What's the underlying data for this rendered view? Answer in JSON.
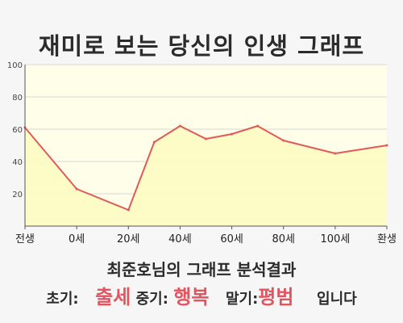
{
  "title": "재미로 보는 당신의 인생 그래프",
  "result": {
    "summary": "최준호님의 그래프 분석결과",
    "early_label": "초기:",
    "early_value": "출세",
    "mid_label": "중기:",
    "mid_value": "행복",
    "late_label": "말기:",
    "late_value": "평범",
    "ending": "입니다"
  },
  "colors": {
    "line": "#e05a5a",
    "fill": "#fdfcc2",
    "plot_bg": "#fefee9",
    "grid": "#d8d8d8",
    "highlight": "#e05560"
  },
  "chart_data": {
    "type": "area",
    "title": "재미로 보는 당신의 인생 그래프",
    "xlabel": "",
    "ylabel": "",
    "ylim": [
      0,
      100
    ],
    "yticks": [
      20,
      40,
      60,
      80,
      100
    ],
    "grid": true,
    "x_tick_labels": [
      "전생",
      "0세",
      "20세",
      "40세",
      "60세",
      "80세",
      "100세",
      "환생"
    ],
    "series": [
      {
        "points": [
          {
            "x": "전생",
            "y": 61
          },
          {
            "x": "0세",
            "y": 23
          },
          {
            "x": "20세",
            "y": 10
          },
          {
            "x": "30세",
            "y": 52
          },
          {
            "x": "40세",
            "y": 62
          },
          {
            "x": "50세",
            "y": 54
          },
          {
            "x": "60세",
            "y": 57
          },
          {
            "x": "70세",
            "y": 62
          },
          {
            "x": "80세",
            "y": 53
          },
          {
            "x": "100세",
            "y": 45
          },
          {
            "x": "환생",
            "y": 50
          }
        ]
      }
    ]
  }
}
